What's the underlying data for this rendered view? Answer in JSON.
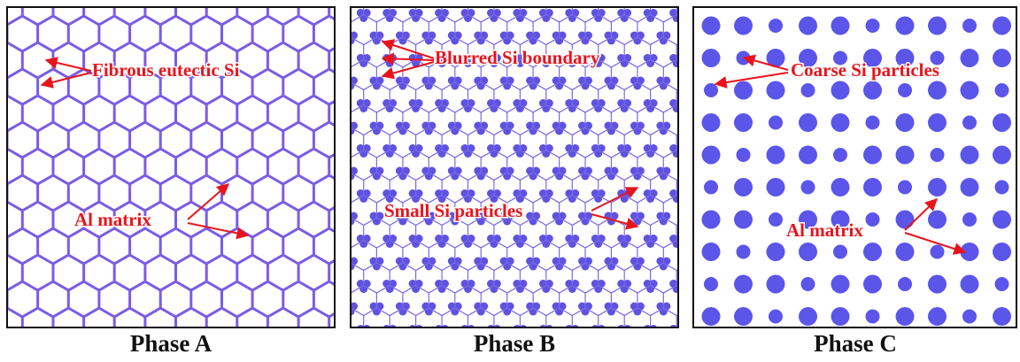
{
  "panels": [
    {
      "caption": "Phase A",
      "labels": [
        "Fibrous eutectic Si",
        "Al matrix"
      ]
    },
    {
      "caption": "Phase B",
      "labels": [
        "Blurred Si boundary",
        "Small Si particles"
      ]
    },
    {
      "caption": "Phase C",
      "labels": [
        "Coarse Si particles",
        "Al matrix"
      ]
    }
  ]
}
